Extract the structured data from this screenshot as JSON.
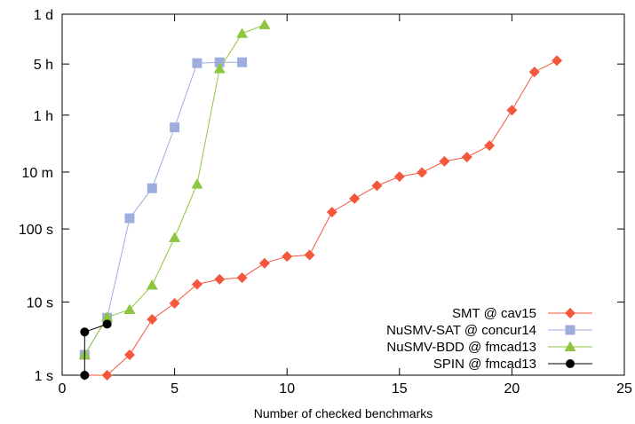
{
  "chart_data": {
    "type": "line",
    "title": "",
    "xlabel": "Number of checked benchmarks",
    "ylabel": "",
    "xlim": [
      0,
      25
    ],
    "x_ticks": [
      0,
      5,
      10,
      15,
      20,
      25
    ],
    "y_scale": "log",
    "y_unit": "seconds",
    "ylim": [
      1,
      86400
    ],
    "y_ticks": [
      {
        "value": 1,
        "label": "1 s"
      },
      {
        "value": 10,
        "label": "10 s"
      },
      {
        "value": 100,
        "label": "100 s"
      },
      {
        "value": 600,
        "label": "10 m"
      },
      {
        "value": 3600,
        "label": "1 h"
      },
      {
        "value": 18000,
        "label": "5 h"
      },
      {
        "value": 86400,
        "label": "1 d"
      }
    ],
    "grid": false,
    "legend_position": "bottom-right",
    "series": [
      {
        "name": "SMT @ cav15",
        "color": "#f4573b",
        "marker": "diamond",
        "x": [
          1,
          2,
          3,
          4,
          5,
          6,
          7,
          8,
          9,
          10,
          11,
          12,
          13,
          14,
          15,
          16,
          17,
          18,
          19,
          20,
          21,
          22
        ],
        "y": [
          1,
          1,
          1.9,
          5.8,
          9.6,
          17.5,
          20.5,
          21.5,
          34,
          42,
          44,
          170,
          260,
          390,
          520,
          590,
          840,
          960,
          1380,
          4200,
          14000,
          20000
        ]
      },
      {
        "name": "NuSMV-SAT @ concur14",
        "color": "#9fadde",
        "marker": "square",
        "x": [
          1,
          2,
          3,
          4,
          5,
          6,
          7,
          8
        ],
        "y": [
          1.9,
          6.1,
          140,
          360,
          2450,
          18500,
          19000,
          19000
        ]
      },
      {
        "name": "NuSMV-BDD @ fmcad13",
        "color": "#8ec63f",
        "marker": "triangle",
        "x": [
          1,
          2,
          3,
          4,
          5,
          6,
          7,
          8,
          9
        ],
        "y": [
          1.9,
          6.2,
          7.9,
          17,
          76,
          410,
          15500,
          47000,
          62000
        ]
      },
      {
        "name": "SPIN @ fmcad13",
        "color": "#000000",
        "marker": "circle",
        "x": [
          1,
          1,
          2
        ],
        "y": [
          1,
          3.9,
          5
        ]
      }
    ]
  }
}
